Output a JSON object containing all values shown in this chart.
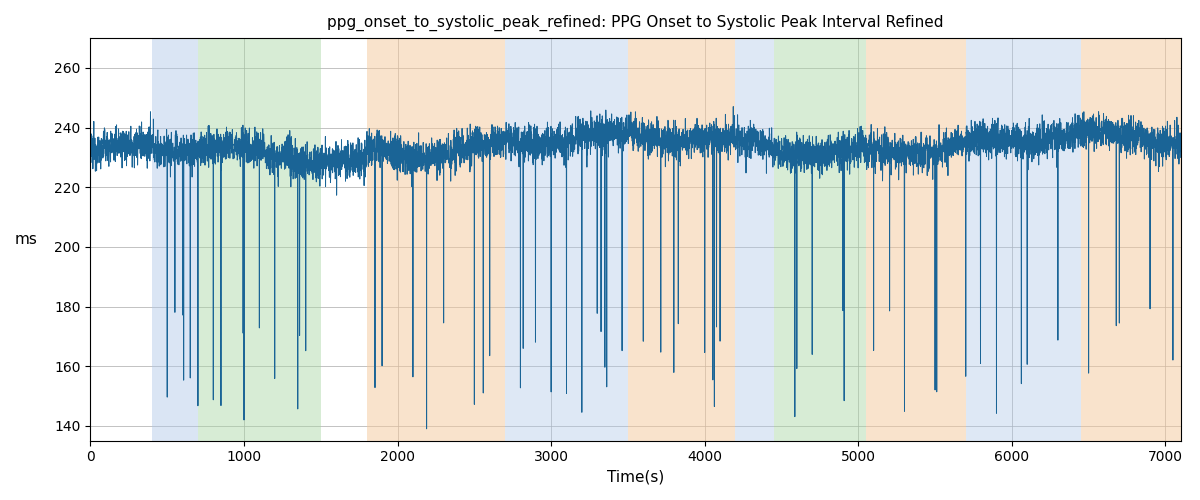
{
  "title": "ppg_onset_to_systolic_peak_refined: PPG Onset to Systolic Peak Interval Refined",
  "xlabel": "Time(s)",
  "ylabel": "ms",
  "xlim": [
    0,
    7100
  ],
  "ylim": [
    135,
    270
  ],
  "yticks": [
    140,
    160,
    180,
    200,
    220,
    240,
    260
  ],
  "xticks": [
    0,
    1000,
    2000,
    3000,
    4000,
    5000,
    6000,
    7000
  ],
  "line_color": "#1a6496",
  "line_width": 0.7,
  "grid_color": "#aaaaaa",
  "background_color": "#ffffff",
  "bands": [
    {
      "xmin": 400,
      "xmax": 700,
      "color": "#aec6e8",
      "alpha": 0.45
    },
    {
      "xmin": 700,
      "xmax": 1500,
      "color": "#a8d5a2",
      "alpha": 0.45
    },
    {
      "xmin": 1800,
      "xmax": 2700,
      "color": "#f5c89a",
      "alpha": 0.5
    },
    {
      "xmin": 2700,
      "xmax": 3500,
      "color": "#aec6e8",
      "alpha": 0.4
    },
    {
      "xmin": 3500,
      "xmax": 4200,
      "color": "#f5c89a",
      "alpha": 0.5
    },
    {
      "xmin": 4200,
      "xmax": 4450,
      "color": "#aec6e8",
      "alpha": 0.4
    },
    {
      "xmin": 4450,
      "xmax": 5050,
      "color": "#a8d5a2",
      "alpha": 0.45
    },
    {
      "xmin": 5050,
      "xmax": 5700,
      "color": "#f5c89a",
      "alpha": 0.5
    },
    {
      "xmin": 5700,
      "xmax": 6450,
      "color": "#aec6e8",
      "alpha": 0.4
    },
    {
      "xmin": 6450,
      "xmax": 7200,
      "color": "#f5c89a",
      "alpha": 0.5
    }
  ],
  "seed": 12345,
  "n_points": 7100,
  "base_mean": 232,
  "base_std": 3.5,
  "dip_probability": 0.004,
  "dip_magnitude_min": 55,
  "dip_magnitude_max": 92
}
